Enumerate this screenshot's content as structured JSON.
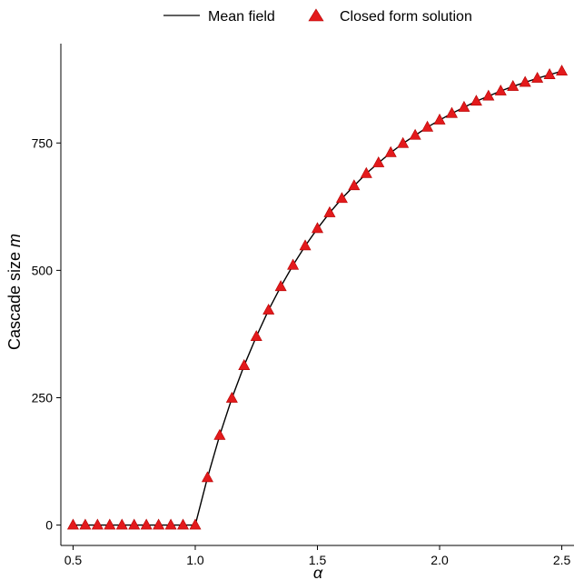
{
  "chart_data": {
    "type": "line",
    "xlabel": "α",
    "ylabel_prefix": "Cascade size ",
    "ylabel_var": "m",
    "xlim": [
      0.45,
      2.55
    ],
    "ylim": [
      -40,
      945
    ],
    "xticks": [
      0.5,
      1.0,
      1.5,
      2.0,
      2.5
    ],
    "xtick_labels": [
      "0.5",
      "1.0",
      "1.5",
      "2.0",
      "2.5"
    ],
    "yticks": [
      0,
      250,
      500,
      750
    ],
    "ytick_labels": [
      "0",
      "250",
      "500",
      "750"
    ],
    "grid": false,
    "legend_position": "top",
    "series": [
      {
        "name": "Mean field",
        "kind": "line",
        "color": "#000000",
        "x": [
          0.5,
          0.55,
          0.6,
          0.65,
          0.7,
          0.75,
          0.8,
          0.85,
          0.9,
          0.95,
          1.0,
          1.05,
          1.1,
          1.15,
          1.2,
          1.25,
          1.3,
          1.35,
          1.4,
          1.45,
          1.5,
          1.55,
          1.6,
          1.65,
          1.7,
          1.75,
          1.8,
          1.85,
          1.9,
          1.95,
          2.0,
          2.05,
          2.1,
          2.15,
          2.2,
          2.25,
          2.3,
          2.35,
          2.4,
          2.45,
          2.5
        ],
        "y": [
          0,
          0,
          0,
          0,
          0,
          0,
          0,
          0,
          0,
          0,
          0,
          93,
          176,
          249,
          313,
          370,
          422,
          468,
          510,
          548,
          582,
          613,
          641,
          666,
          690,
          711,
          731,
          749,
          765,
          781,
          795,
          808,
          820,
          832,
          842,
          852,
          861,
          869,
          877,
          884,
          891
        ]
      },
      {
        "name": "Closed form solution",
        "kind": "triangle-markers",
        "color": "#e31a1c",
        "x": [
          0.5,
          0.55,
          0.6,
          0.65,
          0.7,
          0.75,
          0.8,
          0.85,
          0.9,
          0.95,
          1.0,
          1.05,
          1.1,
          1.15,
          1.2,
          1.25,
          1.3,
          1.35,
          1.4,
          1.45,
          1.5,
          1.55,
          1.6,
          1.65,
          1.7,
          1.75,
          1.8,
          1.85,
          1.9,
          1.95,
          2.0,
          2.05,
          2.1,
          2.15,
          2.2,
          2.25,
          2.3,
          2.35,
          2.4,
          2.45,
          2.5
        ],
        "y": [
          0,
          0,
          0,
          0,
          0,
          0,
          0,
          0,
          0,
          0,
          0,
          93,
          176,
          249,
          313,
          370,
          422,
          468,
          510,
          548,
          582,
          613,
          641,
          666,
          690,
          711,
          731,
          749,
          765,
          781,
          795,
          808,
          820,
          832,
          842,
          852,
          861,
          869,
          877,
          884,
          891
        ]
      }
    ]
  }
}
